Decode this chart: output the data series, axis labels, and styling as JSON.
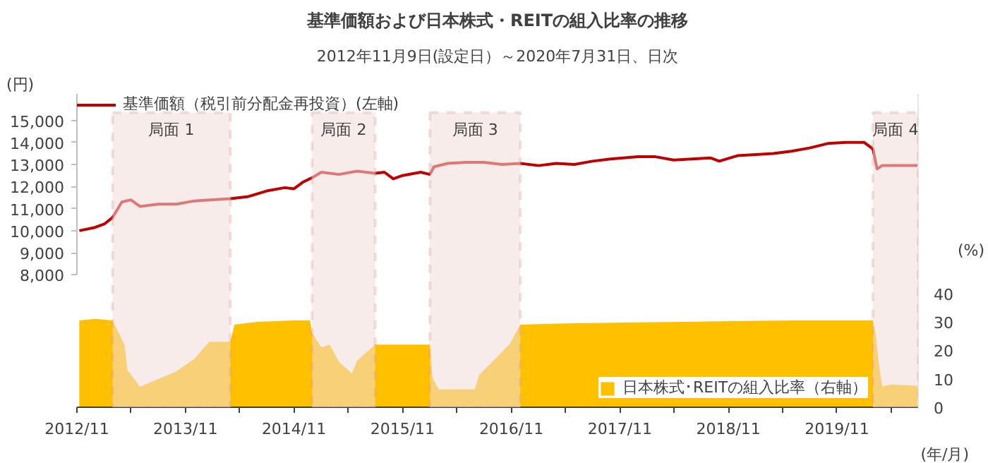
{
  "chart_data": {
    "type": "line",
    "title": "基準価額および日本株式・REITの組入比率の推移",
    "subtitle": "2012年11月9日(設定日）～2020年7月31日、日次",
    "ylabel": "(円)",
    "y2label": "(%)",
    "xlabel": "(年/月)",
    "xlim": [
      "2012-11-01",
      "2020-07-31"
    ],
    "xticks": [
      {
        "value": "2012-11",
        "label": "2012/11"
      },
      {
        "value": "2013-05",
        "label": null
      },
      {
        "value": "2013-11",
        "label": "2013/11"
      },
      {
        "value": "2014-05",
        "label": null
      },
      {
        "value": "2014-11",
        "label": "2014/11"
      },
      {
        "value": "2015-05",
        "label": null
      },
      {
        "value": "2015-11",
        "label": "2015/11"
      },
      {
        "value": "2016-05",
        "label": null
      },
      {
        "value": "2016-11",
        "label": "2016/11"
      },
      {
        "value": "2017-05",
        "label": null
      },
      {
        "value": "2017-11",
        "label": "2017/11"
      },
      {
        "value": "2018-05",
        "label": null
      },
      {
        "value": "2018-11",
        "label": "2018/11"
      },
      {
        "value": "2019-05",
        "label": null
      },
      {
        "value": "2019-11",
        "label": "2019/11"
      },
      {
        "value": "2020-05",
        "label": null
      }
    ],
    "ylim": [
      2000,
      16200
    ],
    "yticks": [
      {
        "value": 8000,
        "label": "8,000"
      },
      {
        "value": 9000,
        "label": "9,000"
      },
      {
        "value": 10000,
        "label": "10,000"
      },
      {
        "value": 11000,
        "label": "11,000"
      },
      {
        "value": 12000,
        "label": "12,000"
      },
      {
        "value": 13000,
        "label": "13,000"
      },
      {
        "value": 14000,
        "label": "14,000"
      },
      {
        "value": 15000,
        "label": "15,000"
      }
    ],
    "y2lim": [
      0,
      110
    ],
    "y2ticks": [
      0,
      10,
      20,
      30,
      40
    ],
    "grid": false,
    "legend": "top left",
    "series": [
      {
        "name": "基準価額（税引前分配金再投資）(左軸)",
        "color": "#c00000",
        "x": [
          "2012-11-09",
          "2013-01",
          "2013-02",
          "2013-03",
          "2013-04",
          "2013-05",
          "2013-06",
          "2013-08",
          "2013-10",
          "2013-12",
          "2014-02",
          "2014-04",
          "2014-06",
          "2014-08",
          "2014-10",
          "2014-11",
          "2014-12",
          "2015-01",
          "2015-02",
          "2015-04",
          "2015-06",
          "2015-08",
          "2015-09",
          "2015-10",
          "2015-11",
          "2016-01",
          "2016-02",
          "2016-02-15",
          "2016-04",
          "2016-06",
          "2016-08",
          "2016-10",
          "2016-12",
          "2017-02",
          "2017-04",
          "2017-06",
          "2017-08",
          "2017-10",
          "2018-01",
          "2018-03",
          "2018-05",
          "2018-07",
          "2018-09",
          "2018-10",
          "2018-12",
          "2019-02",
          "2019-04",
          "2019-06",
          "2019-08",
          "2019-10",
          "2019-12",
          "2020-02",
          "2020-03-01",
          "2020-03-15",
          "2020-04",
          "2020-07-31"
        ],
        "values": [
          10000,
          10150,
          10300,
          10600,
          11300,
          11400,
          11100,
          11200,
          11200,
          11350,
          11400,
          11450,
          11550,
          11800,
          11950,
          11900,
          12200,
          12400,
          12650,
          12550,
          12700,
          12600,
          12650,
          12350,
          12500,
          12650,
          12550,
          12900,
          13050,
          13100,
          13100,
          13000,
          13050,
          12950,
          13050,
          13000,
          13150,
          13250,
          13350,
          13350,
          13200,
          13250,
          13300,
          13150,
          13400,
          13450,
          13500,
          13600,
          13750,
          13950,
          14000,
          14000,
          13700,
          12800,
          12950,
          12950
        ]
      },
      {
        "name": "日本株式･REITの組入比率（右軸）",
        "type": "area",
        "axis": "y2",
        "color": "#ffc000",
        "x": [
          "2012-11-09",
          "2013-01",
          "2013-03",
          "2013-04-10",
          "2013-04-20",
          "2013-06",
          "2013-10",
          "2013-12",
          "2014-01-20",
          "2014-04",
          "2014-04-15",
          "2014-07",
          "2014-11",
          "2014-12-25",
          "2015-01",
          "2015-02",
          "2015-03",
          "2015-04",
          "2015-05-15",
          "2015-06",
          "2015-08",
          "2016-02",
          "2016-02-10",
          "2016-03",
          "2016-07",
          "2016-07-15",
          "2016-09",
          "2016-10-25",
          "2016-12",
          "2017-06",
          "2018-06",
          "2019-06",
          "2020-03",
          "2020-03-10",
          "2020-03-20",
          "2020-04",
          "2020-05",
          "2020-07-31"
        ],
        "values": [
          30.5,
          31,
          30.5,
          22,
          13,
          7.2,
          12.6,
          17,
          23,
          23,
          29,
          30,
          30.5,
          30.5,
          26,
          21,
          22,
          16,
          11.8,
          16.3,
          22,
          22,
          10.3,
          6.3,
          6.3,
          11.2,
          16.3,
          22,
          29,
          29.5,
          30,
          30.5,
          30.5,
          26,
          16,
          7.3,
          8,
          7.5
        ]
      }
    ],
    "bands": [
      {
        "axis": "x",
        "from": "2013-03",
        "to": "2014-04",
        "label": "局面 1",
        "color": "#f2dcdb"
      },
      {
        "axis": "x",
        "from": "2015-01",
        "to": "2015-08",
        "label": "局面 2",
        "color": "#f2dcdb"
      },
      {
        "axis": "x",
        "from": "2016-02",
        "to": "2016-12",
        "label": "局面 3",
        "color": "#f2dcdb"
      },
      {
        "axis": "x",
        "from": "2020-03",
        "to": "2020-07-31",
        "label": "局面 4",
        "color": "#f2dcdb"
      }
    ]
  }
}
